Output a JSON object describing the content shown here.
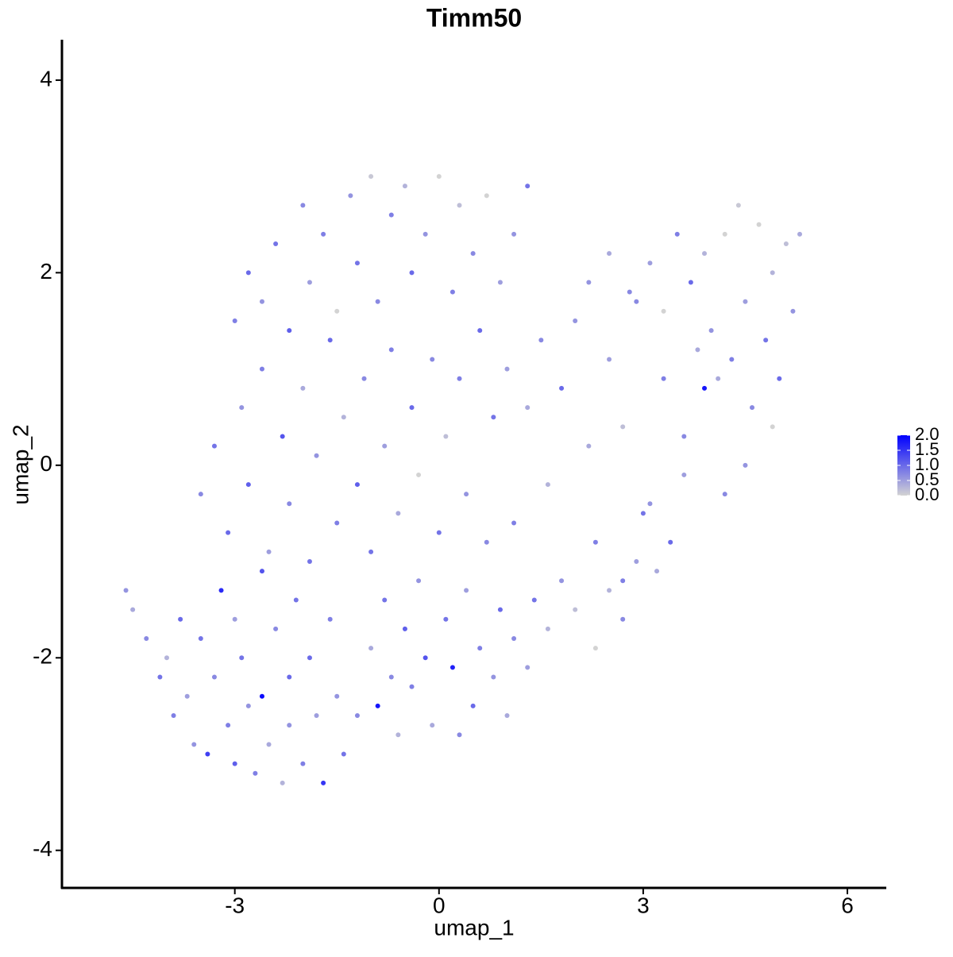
{
  "chart_data": {
    "type": "scatter",
    "title": "Timm50",
    "xlabel": "umap_1",
    "ylabel": "umap_2",
    "xlim": [
      -5.54,
      6.56
    ],
    "ylim": [
      -4.39,
      4.42
    ],
    "xticks": [
      -3,
      0,
      3,
      6
    ],
    "yticks": [
      -4,
      -2,
      0,
      2,
      4
    ],
    "color_low": "#d3d3d3",
    "color_high": "#0000ff",
    "colorlim": [
      0,
      2
    ],
    "colorticks": [
      {
        "value": 0,
        "label": "0.0"
      },
      {
        "value": 0.5,
        "label": "0.5"
      },
      {
        "value": 1,
        "label": "1.0"
      },
      {
        "value": 1.5,
        "label": "1.5"
      },
      {
        "value": 2,
        "label": "2.0"
      }
    ],
    "x": [
      -4.6,
      -4.5,
      -4.3,
      -4.1,
      -4.0,
      -3.9,
      -3.8,
      -3.7,
      -3.6,
      -3.5,
      -3.4,
      -3.3,
      -3.2,
      -3.1,
      -3.0,
      -3.0,
      -2.9,
      -2.8,
      -2.7,
      -2.6,
      -2.6,
      -2.5,
      -2.4,
      -2.3,
      -2.2,
      -2.2,
      -2.1,
      -2.0,
      -1.9,
      -1.8,
      -1.7,
      -1.6,
      -1.5,
      -1.4,
      -1.2,
      -1.0,
      -0.9,
      -0.8,
      -0.7,
      -0.6,
      -0.5,
      -0.4,
      -0.3,
      -0.2,
      -0.1,
      0.1,
      0.2,
      0.3,
      0.4,
      0.5,
      0.6,
      0.8,
      0.9,
      1.0,
      1.1,
      1.3,
      1.4,
      1.6,
      1.8,
      2.0,
      2.3,
      2.5,
      2.7,
      2.9,
      -3.5,
      -3.3,
      -3.1,
      -2.9,
      -2.8,
      -2.6,
      -2.5,
      -2.3,
      -2.2,
      -2.0,
      -1.9,
      -1.8,
      -1.6,
      -1.5,
      -1.4,
      -1.2,
      -1.1,
      -1.0,
      -0.8,
      -0.7,
      -0.6,
      -0.4,
      -0.3,
      -0.1,
      0.0,
      0.1,
      0.3,
      0.4,
      0.6,
      0.7,
      0.8,
      1.0,
      1.1,
      1.3,
      1.5,
      1.6,
      1.8,
      2.0,
      2.2,
      2.3,
      2.5,
      2.7,
      2.9,
      3.1,
      3.3,
      3.4,
      3.6,
      3.8,
      -3.0,
      -2.8,
      -2.6,
      -2.4,
      -2.2,
      -2.0,
      -1.9,
      -1.7,
      -1.5,
      -1.3,
      -1.2,
      -1.0,
      -0.9,
      -0.7,
      -0.5,
      -0.4,
      -0.2,
      0.0,
      0.2,
      0.3,
      0.5,
      0.7,
      0.9,
      1.1,
      1.3,
      2.2,
      2.5,
      2.8,
      3.1,
      3.3,
      3.5,
      3.7,
      3.9,
      4.0,
      4.1,
      4.2,
      4.3,
      4.4,
      4.5,
      4.6,
      4.7,
      4.8,
      4.9,
      5.0,
      5.1,
      5.2,
      5.3,
      3.9,
      4.5,
      4.9,
      3.6,
      4.2,
      3.0,
      2.7,
      3.2
    ],
    "y": [
      -1.3,
      -1.5,
      -1.8,
      -2.2,
      -2.0,
      -2.6,
      -1.6,
      -2.4,
      -2.9,
      -1.8,
      -3.0,
      -2.2,
      -1.3,
      -2.7,
      -1.6,
      -3.1,
      -2.0,
      -2.5,
      -3.2,
      -1.1,
      -2.4,
      -2.9,
      -1.7,
      -3.3,
      -2.2,
      -2.7,
      -1.4,
      -3.1,
      -2.0,
      -2.6,
      -3.3,
      -1.6,
      -2.4,
      -3.0,
      -2.6,
      -1.9,
      -2.5,
      -1.4,
      -2.2,
      -2.8,
      -1.7,
      -2.3,
      -1.2,
      -2.0,
      -2.7,
      -1.6,
      -2.1,
      -2.8,
      -1.3,
      -2.5,
      -1.9,
      -2.2,
      -1.5,
      -2.6,
      -1.8,
      -2.1,
      -1.4,
      -1.7,
      -1.2,
      -1.5,
      -1.9,
      -1.3,
      -1.6,
      -1.0,
      -0.3,
      0.2,
      -0.7,
      0.6,
      -0.2,
      1.0,
      -0.9,
      0.3,
      -0.4,
      0.8,
      -1.0,
      0.1,
      1.3,
      -0.6,
      0.5,
      -0.2,
      0.9,
      -0.9,
      0.2,
      1.2,
      -0.5,
      0.6,
      -0.1,
      1.1,
      -0.7,
      0.3,
      0.9,
      -0.3,
      1.4,
      -0.8,
      0.5,
      1.0,
      -0.6,
      0.6,
      1.3,
      -0.2,
      0.8,
      1.5,
      0.2,
      -0.8,
      1.1,
      0.4,
      1.7,
      -0.4,
      0.9,
      -0.8,
      0.3,
      1.2,
      1.5,
      2.0,
      1.7,
      2.3,
      1.4,
      2.7,
      1.9,
      2.4,
      1.6,
      2.8,
      2.1,
      3.0,
      1.7,
      2.6,
      2.9,
      2.0,
      2.4,
      3.0,
      1.8,
      2.7,
      2.2,
      2.8,
      1.9,
      2.4,
      2.9,
      1.9,
      2.2,
      1.8,
      2.1,
      1.6,
      2.4,
      1.9,
      2.2,
      1.4,
      0.9,
      2.4,
      1.1,
      2.7,
      1.7,
      0.6,
      2.5,
      1.3,
      2.0,
      0.9,
      2.3,
      1.6,
      2.4,
      0.8,
      0.0,
      0.4,
      -0.1,
      -0.3,
      -0.5,
      -1.2,
      -1.1
    ],
    "values": [
      0.6,
      0.4,
      0.7,
      0.9,
      0.3,
      0.8,
      1.0,
      0.5,
      0.6,
      0.9,
      1.4,
      0.7,
      1.6,
      0.8,
      0.5,
      1.1,
      0.9,
      0.6,
      0.8,
      1.2,
      1.9,
      0.4,
      0.7,
      0.3,
      1.0,
      0.6,
      0.9,
      0.8,
      1.0,
      0.5,
      1.5,
      0.8,
      0.6,
      0.9,
      0.7,
      0.4,
      1.8,
      0.9,
      0.7,
      0.3,
      1.1,
      0.8,
      0.6,
      1.2,
      0.4,
      0.9,
      1.7,
      0.7,
      0.5,
      1.0,
      0.8,
      0.6,
      1.0,
      0.4,
      0.7,
      0.5,
      0.9,
      0.3,
      0.6,
      0.2,
      0.0,
      0.3,
      0.7,
      0.5,
      0.7,
      0.9,
      1.0,
      0.6,
      1.1,
      0.8,
      0.5,
      1.2,
      0.7,
      0.4,
      0.9,
      0.6,
      1.0,
      0.8,
      0.3,
      1.1,
      0.7,
      0.9,
      0.5,
      0.8,
      0.4,
      1.0,
      0.0,
      0.7,
      0.9,
      0.2,
      0.8,
      0.6,
      1.0,
      0.7,
      0.9,
      0.5,
      0.8,
      0.4,
      0.7,
      0.3,
      1.0,
      0.6,
      0.4,
      0.8,
      0.5,
      0.2,
      0.7,
      0.6,
      0.8,
      1.0,
      0.7,
      0.4,
      0.8,
      1.0,
      0.6,
      0.9,
      1.1,
      0.7,
      0.5,
      0.8,
      0.0,
      0.6,
      0.9,
      0.1,
      0.7,
      0.8,
      0.3,
      1.0,
      0.6,
      0.0,
      0.8,
      0.2,
      0.7,
      0.0,
      0.5,
      0.6,
      0.9,
      0.6,
      0.4,
      0.7,
      0.5,
      0.0,
      0.8,
      1.0,
      0.3,
      0.6,
      0.4,
      0.0,
      0.8,
      0.1,
      0.5,
      0.7,
      0.0,
      0.9,
      0.3,
      1.0,
      0.2,
      0.6,
      0.4,
      1.8,
      0.6,
      0.0,
      0.5,
      0.7,
      0.9,
      0.8,
      0.4
    ]
  }
}
